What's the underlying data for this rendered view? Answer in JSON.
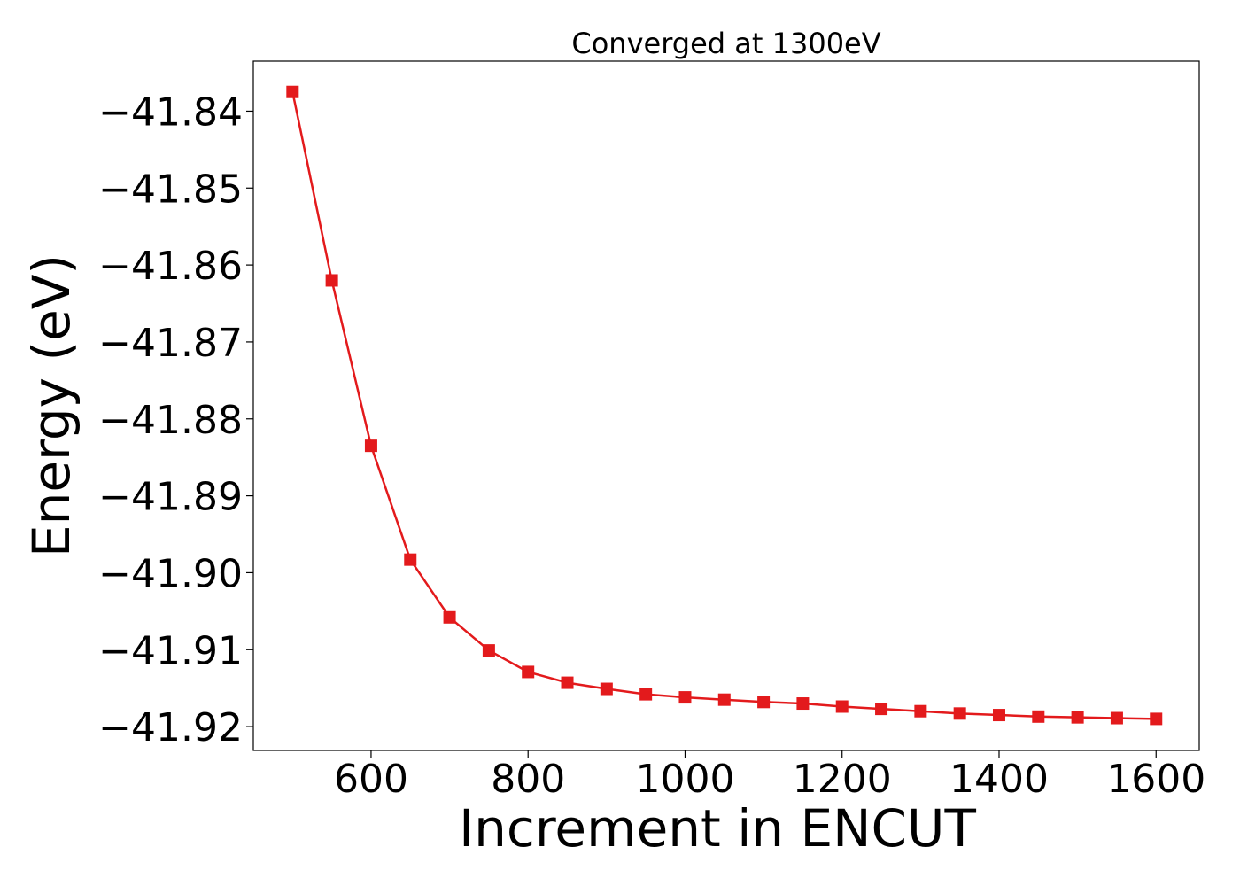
{
  "chart_data": {
    "type": "line",
    "title": "Converged at 1300eV",
    "xlabel": "Increment in ENCUT",
    "ylabel": "Energy (eV)",
    "xlim": [
      450,
      1655
    ],
    "ylim": [
      -41.9231,
      -41.8335
    ],
    "x_ticks": [
      600,
      800,
      1000,
      1200,
      1400,
      1600
    ],
    "x_tick_labels": [
      "600",
      "800",
      "1000",
      "1200",
      "1400",
      "1600"
    ],
    "y_ticks": [
      -41.84,
      -41.85,
      -41.86,
      -41.87,
      -41.88,
      -41.89,
      -41.9,
      -41.91,
      -41.92
    ],
    "y_tick_labels": [
      "−41.84",
      "−41.85",
      "−41.86",
      "−41.87",
      "−41.88",
      "−41.89",
      "−41.90",
      "−41.91",
      "−41.92"
    ],
    "grid": false,
    "series": [
      {
        "color": "#e31a1c",
        "marker": "square",
        "x": [
          500,
          550,
          600,
          650,
          700,
          750,
          800,
          850,
          900,
          950,
          1000,
          1050,
          1100,
          1150,
          1200,
          1250,
          1300,
          1350,
          1400,
          1450,
          1500,
          1550,
          1600
        ],
        "y": [
          -41.8375,
          -41.862,
          -41.8835,
          -41.8983,
          -41.9058,
          -41.9101,
          -41.9129,
          -41.9143,
          -41.9151,
          -41.9158,
          -41.9162,
          -41.9165,
          -41.9168,
          -41.917,
          -41.9174,
          -41.9177,
          -41.918,
          -41.9183,
          -41.9185,
          -41.9187,
          -41.9188,
          -41.9189,
          -41.919
        ]
      }
    ]
  }
}
